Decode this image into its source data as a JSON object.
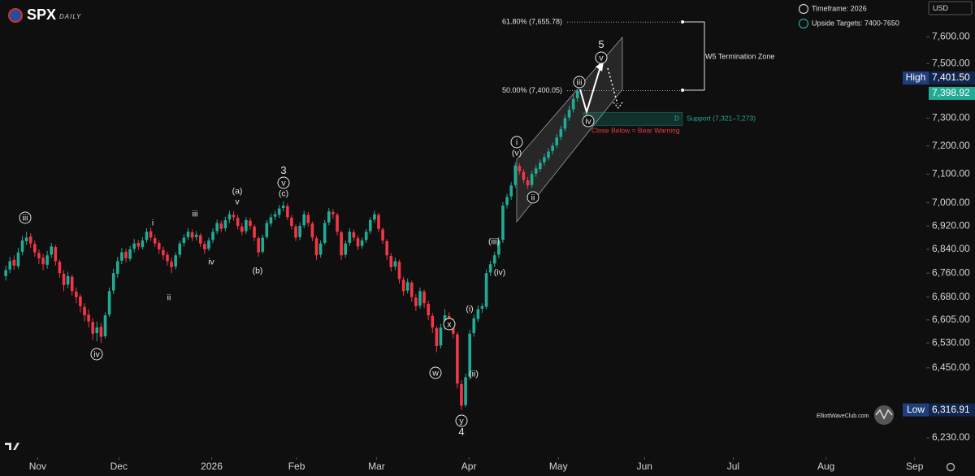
{
  "header": {
    "symbol": "SPX",
    "interval": "DAILY"
  },
  "info": {
    "timeframe": "Timeframe: 2026",
    "targets": "Upside Targets: 7400-7650",
    "currency": "USD"
  },
  "watermark": "ElliottWaveClub.com",
  "chart_data": {
    "type": "candlestick",
    "up_color": "#22ab94",
    "down_color": "#f23645",
    "log_scale": true,
    "xlim": [
      -1.4,
      222.2
    ],
    "xticks": [
      {
        "value": 7.7,
        "label": "Nov"
      },
      {
        "value": 27.3,
        "label": "Dec"
      },
      {
        "value": 49.7,
        "label": "2026"
      },
      {
        "value": 70.2,
        "label": "Feb"
      },
      {
        "value": 89.5,
        "label": "Mar"
      },
      {
        "value": 111.8,
        "label": "Apr"
      },
      {
        "value": 133.4,
        "label": "May"
      },
      {
        "value": 154.2,
        "label": "Jun"
      },
      {
        "value": 175.6,
        "label": "Jul"
      },
      {
        "value": 198,
        "label": "Aug"
      },
      {
        "value": 219.4,
        "label": "Sep"
      }
    ],
    "ylim": [
      6190,
      7740
    ],
    "yticks": [
      {
        "value": 7600,
        "label": "7,600.00"
      },
      {
        "value": 7500,
        "label": "7,500.00"
      },
      {
        "value": 7300,
        "label": "7,300.00"
      },
      {
        "value": 7200,
        "label": "7,200.00"
      },
      {
        "value": 7100,
        "label": "7,100.00"
      },
      {
        "value": 7000,
        "label": "7,000.00"
      },
      {
        "value": 6920,
        "label": "6,920.00"
      },
      {
        "value": 6840,
        "label": "6,840.00"
      },
      {
        "value": 6760,
        "label": "6,760.00"
      },
      {
        "value": 6680,
        "label": "6,680.00"
      },
      {
        "value": 6605,
        "label": "6,605.00"
      },
      {
        "value": 6530,
        "label": "6,530.00"
      },
      {
        "value": 6450,
        "label": "6,450.00"
      },
      {
        "value": 6230,
        "label": "6,230.00"
      }
    ],
    "high": {
      "label": "High",
      "value": 7401.5,
      "value_label": "7,401.50"
    },
    "low": {
      "label": "Low",
      "value": 6316.91,
      "value_label": "6,316.91"
    },
    "last": {
      "value": 7398.92,
      "value_label": "7,398.92"
    },
    "fib_levels": [
      {
        "label": "61.80% (7,655.78)",
        "value": 7655.78
      },
      {
        "label": "50.00% (7,400.05)",
        "value": 7400.05
      }
    ],
    "zone_label": "W5 Termination Zone",
    "support": {
      "label": "Support (7,321–7,273)",
      "high": 7321,
      "low": 7273,
      "marker": "D"
    },
    "warning": "Close Below = Bear Warning",
    "wave_labels": [
      "iii",
      "iv",
      "i",
      "ii",
      "iii",
      "iv",
      "(a)",
      "v",
      "(b)",
      "3",
      "v",
      "(c)",
      "x",
      "w",
      "(i)",
      "(ii)",
      "y",
      "4",
      "(iii)",
      "(iv)",
      "i",
      "(v)",
      "ii",
      "iii",
      "iv",
      "v",
      "5"
    ],
    "candles": [
      [
        6750,
        6785,
        6735,
        6770
      ],
      [
        6772,
        6815,
        6760,
        6800
      ],
      [
        6805,
        6820,
        6770,
        6785
      ],
      [
        6783,
        6845,
        6775,
        6830
      ],
      [
        6832,
        6885,
        6820,
        6870
      ],
      [
        6868,
        6900,
        6855,
        6880
      ],
      [
        6884,
        6895,
        6845,
        6860
      ],
      [
        6858,
        6870,
        6815,
        6830
      ],
      [
        6828,
        6840,
        6790,
        6810
      ],
      [
        6812,
        6825,
        6770,
        6790
      ],
      [
        6788,
        6835,
        6775,
        6820
      ],
      [
        6822,
        6862,
        6810,
        6850
      ],
      [
        6848,
        6855,
        6785,
        6800
      ],
      [
        6798,
        6805,
        6745,
        6760
      ],
      [
        6758,
        6770,
        6700,
        6720
      ],
      [
        6722,
        6765,
        6710,
        6750
      ],
      [
        6748,
        6755,
        6685,
        6700
      ],
      [
        6698,
        6712,
        6660,
        6680
      ],
      [
        6682,
        6690,
        6630,
        6650
      ],
      [
        6648,
        6660,
        6600,
        6620
      ],
      [
        6622,
        6640,
        6580,
        6600
      ],
      [
        6598,
        6610,
        6540,
        6560
      ],
      [
        6562,
        6600,
        6535,
        6580
      ],
      [
        6582,
        6595,
        6530,
        6550
      ],
      [
        6552,
        6630,
        6545,
        6620
      ],
      [
        6622,
        6712,
        6615,
        6700
      ],
      [
        6702,
        6775,
        6690,
        6760
      ],
      [
        6758,
        6815,
        6745,
        6800
      ],
      [
        6802,
        6845,
        6790,
        6830
      ],
      [
        6832,
        6842,
        6795,
        6810
      ],
      [
        6808,
        6852,
        6800,
        6840
      ],
      [
        6842,
        6875,
        6830,
        6860
      ],
      [
        6862,
        6872,
        6838,
        6850
      ],
      [
        6848,
        6882,
        6840,
        6870
      ],
      [
        6872,
        6912,
        6862,
        6900
      ],
      [
        6902,
        6915,
        6868,
        6880
      ],
      [
        6878,
        6890,
        6848,
        6860
      ],
      [
        6862,
        6870,
        6825,
        6840
      ],
      [
        6838,
        6850,
        6805,
        6820
      ],
      [
        6822,
        6832,
        6785,
        6800
      ],
      [
        6798,
        6812,
        6760,
        6780
      ],
      [
        6782,
        6830,
        6772,
        6820
      ],
      [
        6822,
        6870,
        6812,
        6860
      ],
      [
        6862,
        6892,
        6850,
        6880
      ],
      [
        6882,
        6912,
        6872,
        6900
      ],
      [
        6898,
        6908,
        6868,
        6880
      ],
      [
        6882,
        6902,
        6870,
        6890
      ],
      [
        6888,
        6895,
        6848,
        6860
      ],
      [
        6858,
        6868,
        6825,
        6840
      ],
      [
        6842,
        6880,
        6835,
        6870
      ],
      [
        6872,
        6912,
        6862,
        6900
      ],
      [
        6902,
        6942,
        6892,
        6930
      ],
      [
        6928,
        6938,
        6898,
        6910
      ],
      [
        6912,
        6952,
        6902,
        6940
      ],
      [
        6942,
        6972,
        6930,
        6960
      ],
      [
        6958,
        6970,
        6938,
        6950
      ],
      [
        6948,
        6958,
        6908,
        6920
      ],
      [
        6918,
        6930,
        6888,
        6900
      ],
      [
        6902,
        6950,
        6892,
        6940
      ],
      [
        6938,
        6948,
        6908,
        6920
      ],
      [
        6918,
        6925,
        6868,
        6880
      ],
      [
        6878,
        6885,
        6815,
        6830
      ],
      [
        6832,
        6890,
        6825,
        6880
      ],
      [
        6882,
        6940,
        6875,
        6930
      ],
      [
        6928,
        6962,
        6918,
        6950
      ],
      [
        6952,
        6972,
        6940,
        6960
      ],
      [
        6958,
        6992,
        6948,
        6980
      ],
      [
        6982,
        7005,
        6970,
        6990
      ],
      [
        6988,
        6998,
        6940,
        6950
      ],
      [
        6948,
        6958,
        6908,
        6920
      ],
      [
        6918,
        6925,
        6868,
        6880
      ],
      [
        6882,
        6932,
        6872,
        6920
      ],
      [
        6922,
        6972,
        6912,
        6960
      ],
      [
        6958,
        6968,
        6918,
        6930
      ],
      [
        6928,
        6935,
        6868,
        6880
      ],
      [
        6878,
        6885,
        6805,
        6820
      ],
      [
        6822,
        6870,
        6812,
        6860
      ],
      [
        6862,
        6940,
        6855,
        6930
      ],
      [
        6932,
        6982,
        6922,
        6970
      ],
      [
        6968,
        6978,
        6945,
        6960
      ],
      [
        6958,
        6965,
        6888,
        6900
      ],
      [
        6898,
        6905,
        6805,
        6820
      ],
      [
        6822,
        6870,
        6812,
        6860
      ],
      [
        6862,
        6912,
        6852,
        6900
      ],
      [
        6898,
        6908,
        6868,
        6880
      ],
      [
        6878,
        6888,
        6838,
        6850
      ],
      [
        6852,
        6880,
        6842,
        6870
      ],
      [
        6872,
        6910,
        6862,
        6900
      ],
      [
        6902,
        6950,
        6892,
        6940
      ],
      [
        6942,
        6972,
        6930,
        6960
      ],
      [
        6958,
        6965,
        6898,
        6910
      ],
      [
        6908,
        6915,
        6858,
        6870
      ],
      [
        6868,
        6875,
        6805,
        6820
      ],
      [
        6818,
        6828,
        6765,
        6780
      ],
      [
        6782,
        6812,
        6770,
        6800
      ],
      [
        6798,
        6805,
        6725,
        6740
      ],
      [
        6738,
        6748,
        6685,
        6700
      ],
      [
        6702,
        6742,
        6692,
        6730
      ],
      [
        6728,
        6735,
        6665,
        6680
      ],
      [
        6678,
        6690,
        6635,
        6650
      ],
      [
        6652,
        6712,
        6642,
        6700
      ],
      [
        6698,
        6705,
        6645,
        6660
      ],
      [
        6658,
        6668,
        6605,
        6620
      ],
      [
        6618,
        6628,
        6562,
        6580
      ],
      [
        6578,
        6585,
        6500,
        6520
      ],
      [
        6522,
        6592,
        6512,
        6580
      ],
      [
        6582,
        6640,
        6572,
        6620
      ],
      [
        6618,
        6630,
        6585,
        6600
      ],
      [
        6598,
        6610,
        6545,
        6560
      ],
      [
        6558,
        6565,
        6385,
        6400
      ],
      [
        6398,
        6410,
        6316.91,
        6330
      ],
      [
        6332,
        6432,
        6325,
        6420
      ],
      [
        6422,
        6572,
        6412,
        6560
      ],
      [
        6562,
        6622,
        6550,
        6610
      ],
      [
        6608,
        6652,
        6598,
        6640
      ],
      [
        6642,
        6660,
        6628,
        6650
      ],
      [
        6648,
        6772,
        6640,
        6760
      ],
      [
        6762,
        6802,
        6750,
        6790
      ],
      [
        6792,
        6832,
        6780,
        6820
      ],
      [
        6822,
        6882,
        6810,
        6870
      ],
      [
        6872,
        7002,
        6862,
        6990
      ],
      [
        6992,
        7032,
        6980,
        7020
      ],
      [
        7022,
        7072,
        7010,
        7060
      ],
      [
        7062,
        7142,
        7052,
        7130
      ],
      [
        7128,
        7138,
        7098,
        7110
      ],
      [
        7108,
        7118,
        7068,
        7080
      ],
      [
        7078,
        7090,
        7048,
        7060
      ],
      [
        7062,
        7112,
        7052,
        7100
      ],
      [
        7102,
        7132,
        7090,
        7120
      ],
      [
        7118,
        7152,
        7108,
        7140
      ],
      [
        7142,
        7172,
        7130,
        7160
      ],
      [
        7158,
        7192,
        7148,
        7180
      ],
      [
        7182,
        7212,
        7170,
        7200
      ],
      [
        7202,
        7242,
        7192,
        7230
      ],
      [
        7232,
        7272,
        7220,
        7260
      ],
      [
        7262,
        7312,
        7252,
        7300
      ],
      [
        7302,
        7345,
        7290,
        7330
      ],
      [
        7332,
        7385,
        7320,
        7370
      ],
      [
        7372,
        7401.5,
        7360,
        7398.92
      ]
    ]
  }
}
